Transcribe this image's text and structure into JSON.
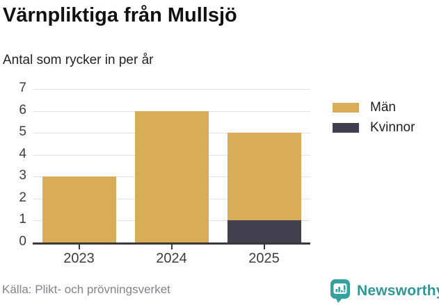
{
  "title": "Värnpliktiga från Mullsjö",
  "subtitle": "Antal som rycker in per år",
  "source": "Källa: Plikt- och prövningsverket",
  "branding": {
    "name": "Newsworthy",
    "color": "#2F9795",
    "icon": "bar-chart-speech-bubble-icon"
  },
  "colors": {
    "bar_men": "#D9AC57",
    "bar_women": "#42404E",
    "axis": "#3A3A3A",
    "grid": "#E2E2E2",
    "tick_labels": "#3C3C3C",
    "background": "#FFFFFF"
  },
  "chart_data": {
    "type": "bar",
    "stacked": true,
    "title": "Värnpliktiga från Mullsjö",
    "subtitle": "Antal som rycker in per år",
    "categories": [
      "2023",
      "2024",
      "2025"
    ],
    "series": [
      {
        "name": "Män",
        "color": "#D9AC57",
        "values": [
          3,
          6,
          4
        ]
      },
      {
        "name": "Kvinnor",
        "color": "#42404E",
        "values": [
          0,
          0,
          1
        ]
      }
    ],
    "stack_order_bottom_to_top": [
      "Kvinnor",
      "Män"
    ],
    "totals": [
      3,
      6,
      5
    ],
    "xlabel": "",
    "ylabel": "",
    "ylim": [
      0,
      7
    ],
    "yticks": [
      0,
      1,
      2,
      3,
      4,
      5,
      6,
      7
    ],
    "grid": "horizontal",
    "legend_position": "right"
  }
}
